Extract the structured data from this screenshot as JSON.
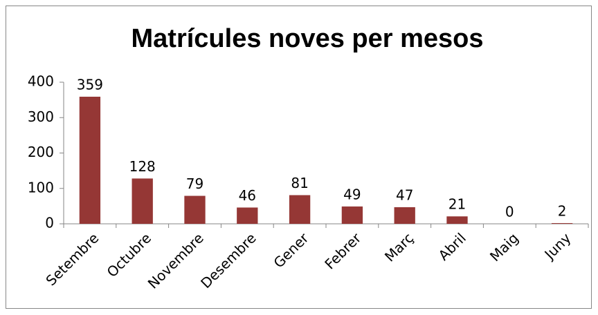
{
  "chart_data": {
    "type": "bar",
    "title": "Matrícules noves per mesos",
    "categories": [
      "Setembre",
      "Octubre",
      "Novembre",
      "Desembre",
      "Gener",
      "Febrer",
      "Març",
      "Abril",
      "Maig",
      "Juny"
    ],
    "values": [
      359,
      128,
      79,
      46,
      81,
      49,
      47,
      21,
      0,
      2
    ],
    "color": "#953735",
    "ylim": [
      0,
      400
    ],
    "yticks": [
      0,
      100,
      200,
      300,
      400
    ],
    "grid": false
  }
}
